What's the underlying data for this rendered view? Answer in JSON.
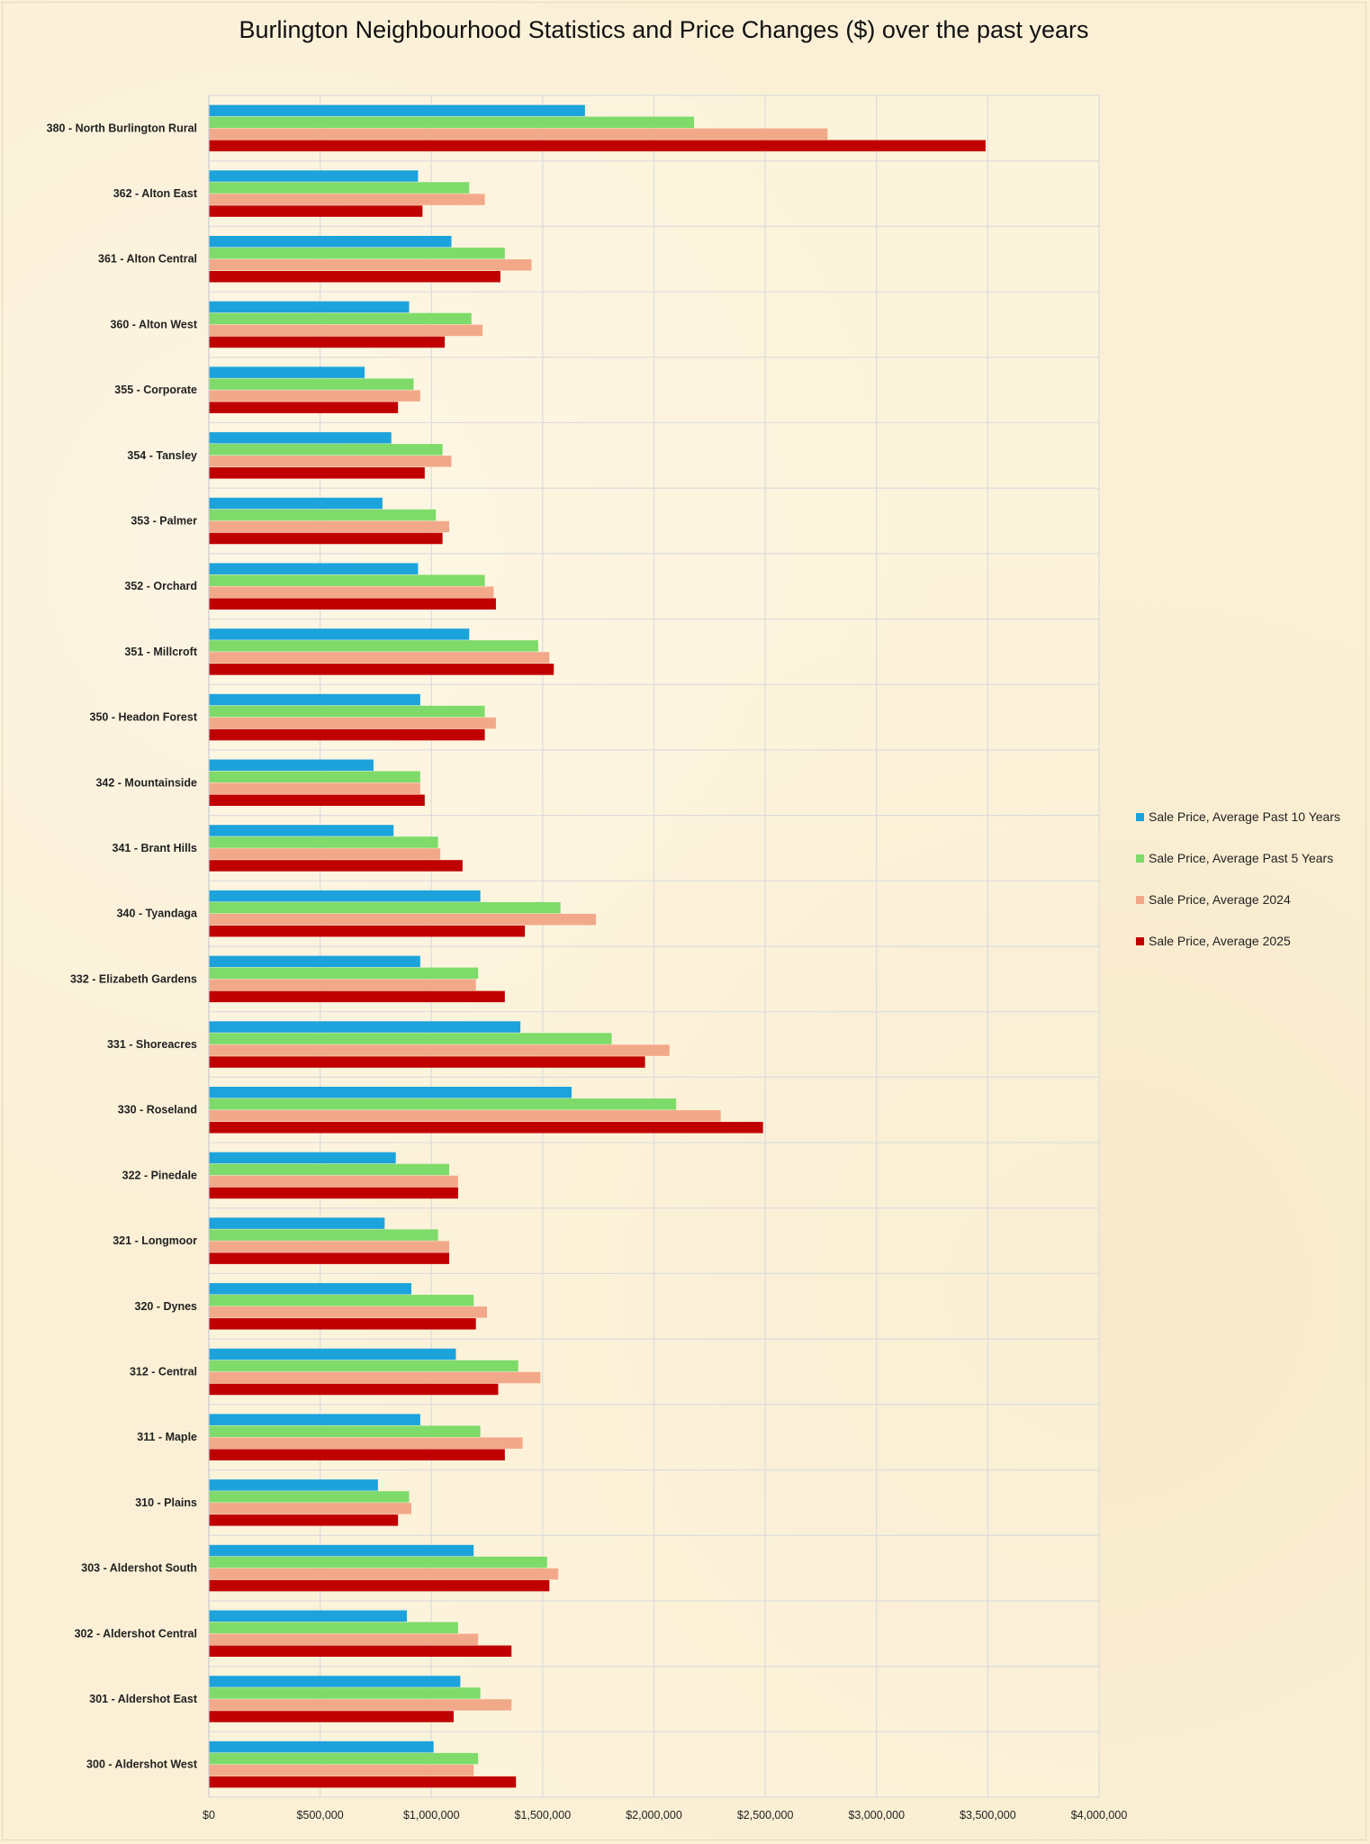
{
  "chart_data": {
    "type": "bar",
    "orientation": "horizontal",
    "title": "Burlington Neighbourhood Statistics and Price Changes ($)  over the past years",
    "xlabel": "",
    "ylabel": "",
    "xlim": [
      0,
      4000000
    ],
    "x_ticks": [
      "$0",
      "$500,000",
      "$1,000,000",
      "$1,500,000",
      "$2,000,000",
      "$2,500,000",
      "$3,000,000",
      "$3,500,000",
      "$4,000,000"
    ],
    "grid": true,
    "legend_position": "right",
    "categories": [
      "380 - North Burlington Rural",
      "362 - Alton East",
      "361 - Alton Central",
      "360 - Alton West",
      "355 - Corporate",
      "354 - Tansley",
      "353 - Palmer",
      "352 - Orchard",
      "351 - Millcroft",
      "350 - Headon Forest",
      "342 - Mountainside",
      "341 - Brant Hills",
      "340 - Tyandaga",
      "332 - Elizabeth Gardens",
      "331 - Shoreacres",
      "330 - Roseland",
      "322 - Pinedale",
      "321 - Longmoor",
      "320 - Dynes",
      "312 - Central",
      "311 - Maple",
      "310 - Plains",
      "303 - Aldershot South",
      "302 - Aldershot Central",
      "301 - Aldershot East",
      "300 - Aldershot West"
    ],
    "series": [
      {
        "name": "Sale Price, Average Past 10 Years",
        "color": "#1ca3dc",
        "values": [
          1690000,
          940000,
          1090000,
          900000,
          700000,
          820000,
          780000,
          940000,
          1170000,
          950000,
          740000,
          830000,
          1220000,
          950000,
          1400000,
          1630000,
          840000,
          790000,
          910000,
          1110000,
          950000,
          760000,
          1190000,
          890000,
          1130000,
          1010000
        ]
      },
      {
        "name": "Sale Price, Average Past 5 Years",
        "color": "#7edb6a",
        "values": [
          2180000,
          1170000,
          1330000,
          1180000,
          920000,
          1050000,
          1020000,
          1240000,
          1480000,
          1240000,
          950000,
          1030000,
          1580000,
          1210000,
          1810000,
          2100000,
          1080000,
          1030000,
          1190000,
          1390000,
          1220000,
          900000,
          1520000,
          1120000,
          1220000,
          1210000
        ]
      },
      {
        "name": "Sale Price, Average 2024",
        "color": "#f2a98a",
        "values": [
          2780000,
          1240000,
          1450000,
          1230000,
          950000,
          1090000,
          1080000,
          1280000,
          1530000,
          1290000,
          950000,
          1040000,
          1740000,
          1200000,
          2070000,
          2300000,
          1120000,
          1080000,
          1250000,
          1490000,
          1410000,
          910000,
          1570000,
          1210000,
          1360000,
          1190000
        ]
      },
      {
        "name": "Sale Price, Average 2025",
        "color": "#c00000",
        "values": [
          3490000,
          960000,
          1310000,
          1060000,
          850000,
          970000,
          1050000,
          1290000,
          1550000,
          1240000,
          970000,
          1140000,
          1420000,
          1330000,
          1960000,
          2490000,
          1120000,
          1080000,
          1200000,
          1300000,
          1330000,
          850000,
          1530000,
          1360000,
          1100000,
          1380000
        ]
      }
    ]
  }
}
